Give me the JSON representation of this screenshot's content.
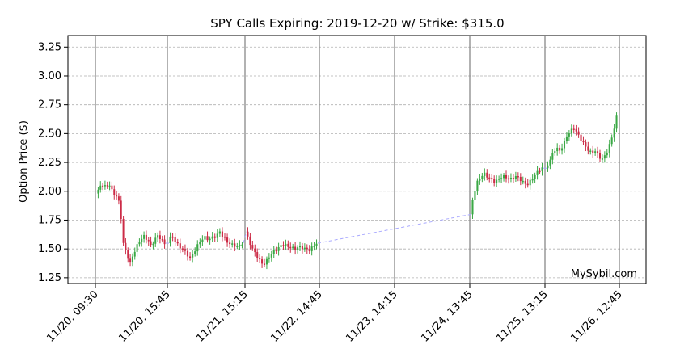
{
  "chart_data": {
    "type": "candlestick",
    "title": "SPY Calls Expiring: 2019-12-20 w/ Strike: $315.0",
    "xlabel": "",
    "ylabel": "Option Price ($)",
    "ylim": [
      1.2,
      3.35
    ],
    "yticks": [
      1.25,
      1.5,
      1.75,
      2.0,
      2.25,
      2.5,
      2.75,
      3.0,
      3.25
    ],
    "ytick_labels": [
      "1.25",
      "1.50",
      "1.75",
      "2.00",
      "2.25",
      "2.50",
      "2.75",
      "3.00",
      "3.25"
    ],
    "xticks": [
      "11/20, 09:30",
      "11/20, 15:45",
      "11/21, 15:15",
      "11/22, 14:45",
      "11/23, 14:15",
      "11/24, 13:45",
      "11/25, 13:15",
      "11/26, 12:45"
    ],
    "grid": true,
    "watermark": "MySybil.com",
    "colors": {
      "up": "#3aa845",
      "down": "#cc2b46",
      "gap_line": "#a9a9ff",
      "session_line": "#888888",
      "grid": "#b0b0b0"
    },
    "sessions": [
      {
        "day": "11/20",
        "close_path": [
          [
            0.0,
            1.98
          ],
          [
            0.05,
            2.03
          ],
          [
            0.1,
            2.06
          ],
          [
            0.15,
            2.04
          ],
          [
            0.2,
            2.06
          ],
          [
            0.25,
            1.98
          ],
          [
            0.3,
            1.96
          ],
          [
            0.35,
            1.88
          ],
          [
            0.4,
            1.55
          ],
          [
            0.45,
            1.45
          ],
          [
            0.5,
            1.38
          ],
          [
            0.55,
            1.46
          ],
          [
            0.6,
            1.53
          ],
          [
            0.65,
            1.58
          ],
          [
            0.7,
            1.61
          ],
          [
            0.75,
            1.58
          ],
          [
            0.8,
            1.53
          ],
          [
            0.85,
            1.57
          ],
          [
            0.9,
            1.62
          ],
          [
            0.95,
            1.58
          ],
          [
            1.0,
            1.55
          ]
        ]
      },
      {
        "day": "11/21",
        "close_path": [
          [
            0.0,
            1.55
          ],
          [
            0.05,
            1.62
          ],
          [
            0.1,
            1.57
          ],
          [
            0.15,
            1.52
          ],
          [
            0.2,
            1.5
          ],
          [
            0.25,
            1.46
          ],
          [
            0.3,
            1.42
          ],
          [
            0.35,
            1.47
          ],
          [
            0.4,
            1.53
          ],
          [
            0.45,
            1.58
          ],
          [
            0.5,
            1.6
          ],
          [
            0.55,
            1.58
          ],
          [
            0.6,
            1.6
          ],
          [
            0.65,
            1.61
          ],
          [
            0.7,
            1.65
          ],
          [
            0.75,
            1.6
          ],
          [
            0.8,
            1.56
          ],
          [
            0.85,
            1.54
          ],
          [
            0.9,
            1.53
          ],
          [
            0.95,
            1.52
          ],
          [
            1.0,
            1.55
          ]
        ]
      },
      {
        "day": "11/22",
        "close_path": [
          [
            0.0,
            1.65
          ],
          [
            0.05,
            1.57
          ],
          [
            0.1,
            1.5
          ],
          [
            0.15,
            1.45
          ],
          [
            0.2,
            1.4
          ],
          [
            0.25,
            1.36
          ],
          [
            0.3,
            1.4
          ],
          [
            0.35,
            1.45
          ],
          [
            0.4,
            1.48
          ],
          [
            0.45,
            1.5
          ],
          [
            0.5,
            1.53
          ],
          [
            0.55,
            1.54
          ],
          [
            0.6,
            1.52
          ],
          [
            0.65,
            1.51
          ],
          [
            0.7,
            1.5
          ],
          [
            0.75,
            1.52
          ],
          [
            0.8,
            1.51
          ],
          [
            0.85,
            1.5
          ],
          [
            0.9,
            1.49
          ],
          [
            0.95,
            1.52
          ],
          [
            1.0,
            1.55
          ]
        ]
      },
      {
        "day": "11/25",
        "close_path": [
          [
            0.0,
            1.8
          ],
          [
            0.05,
            1.98
          ],
          [
            0.1,
            2.08
          ],
          [
            0.15,
            2.13
          ],
          [
            0.2,
            2.15
          ],
          [
            0.25,
            2.12
          ],
          [
            0.3,
            2.1
          ],
          [
            0.35,
            2.08
          ],
          [
            0.4,
            2.11
          ],
          [
            0.45,
            2.13
          ],
          [
            0.5,
            2.12
          ],
          [
            0.55,
            2.1
          ],
          [
            0.6,
            2.12
          ],
          [
            0.65,
            2.13
          ],
          [
            0.7,
            2.1
          ],
          [
            0.75,
            2.07
          ],
          [
            0.8,
            2.06
          ],
          [
            0.85,
            2.1
          ],
          [
            0.9,
            2.14
          ],
          [
            0.95,
            2.18
          ],
          [
            1.0,
            2.2
          ]
        ]
      },
      {
        "day": "11/26",
        "close_path": [
          [
            0.0,
            2.2
          ],
          [
            0.05,
            2.25
          ],
          [
            0.1,
            2.32
          ],
          [
            0.15,
            2.38
          ],
          [
            0.2,
            2.35
          ],
          [
            0.25,
            2.4
          ],
          [
            0.3,
            2.48
          ],
          [
            0.35,
            2.52
          ],
          [
            0.4,
            2.55
          ],
          [
            0.45,
            2.5
          ],
          [
            0.5,
            2.45
          ],
          [
            0.55,
            2.4
          ],
          [
            0.6,
            2.36
          ],
          [
            0.65,
            2.33
          ],
          [
            0.7,
            2.35
          ],
          [
            0.75,
            2.3
          ],
          [
            0.8,
            2.28
          ],
          [
            0.85,
            2.32
          ],
          [
            0.9,
            2.4
          ],
          [
            0.95,
            2.5
          ],
          [
            1.0,
            2.65
          ]
        ]
      }
    ]
  }
}
